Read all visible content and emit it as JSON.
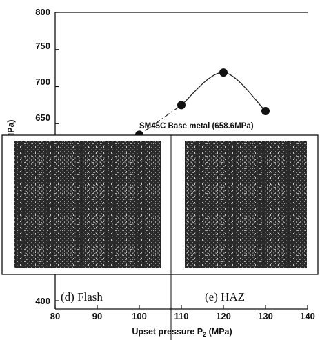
{
  "chart_data": {
    "type": "line",
    "xlabel": "Upset pressure P",
    "xlabel_sub": "2",
    "xlabel_unit": " (MPa)",
    "ylabel": "Tensile strength (MPa)",
    "xlim": [
      80,
      140
    ],
    "ylim": [
      400,
      800
    ],
    "x_ticks": [
      "80",
      "90",
      "100",
      "110",
      "120",
      "130",
      "140"
    ],
    "y_ticks_visible": [
      "800",
      "750",
      "700",
      "650"
    ],
    "y_ticks_bottom": [
      "400"
    ],
    "series": [
      {
        "x": [
          100,
          110,
          120,
          130
        ],
        "y": [
          635,
          675,
          719,
          667
        ]
      }
    ],
    "curve_dashed_from_x": 90,
    "annotations": {
      "baseline_label": "SM45C Base metal (658.6MPa)",
      "baseline_value": 658.6
    },
    "inset_panels": [
      {
        "caption": "(d) Flash"
      },
      {
        "caption": "(e) HAZ"
      }
    ]
  }
}
